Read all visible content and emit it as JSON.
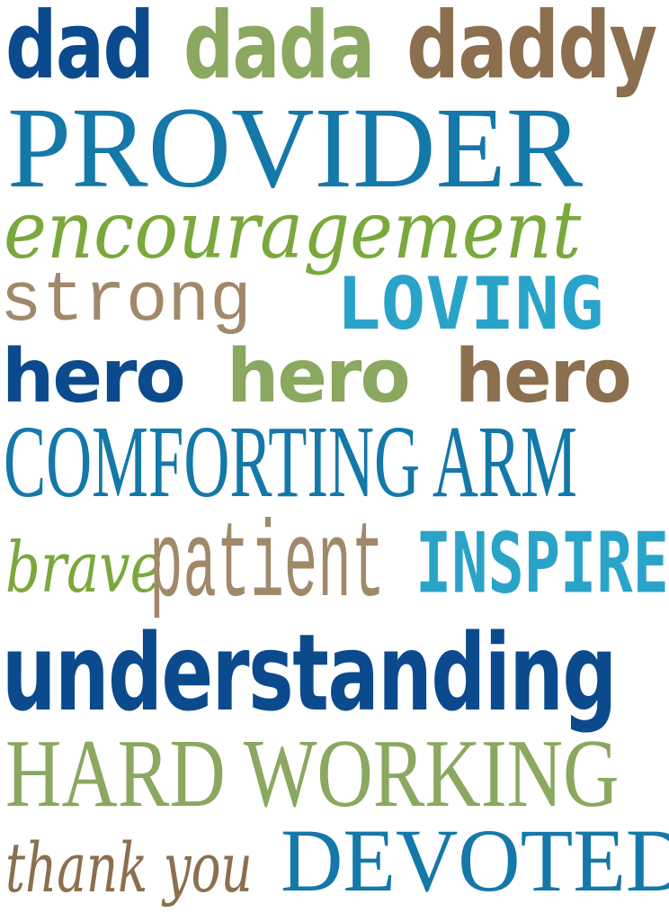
{
  "colors": {
    "navy": "#0c4a8e",
    "sage": "#8aa860",
    "brown": "#8b6f4e",
    "teal": "#1478a8",
    "green": "#7aa83c",
    "tan": "#a0896a",
    "aqua": "#2aa3c8"
  },
  "poster": {
    "row1": [
      "dad",
      "dada",
      "daddy"
    ],
    "row2": "PROVIDER",
    "row3": "encouragement",
    "row4": [
      "strong",
      "LOVING"
    ],
    "row5": [
      "hero",
      "hero",
      "hero"
    ],
    "row6": "COMFORTING ARM",
    "row7": [
      "brave",
      "patient",
      "INSPIRE"
    ],
    "row8": "understanding",
    "row9": "HARD WORKING",
    "row10": [
      "thank you",
      "DEVOTED"
    ]
  }
}
